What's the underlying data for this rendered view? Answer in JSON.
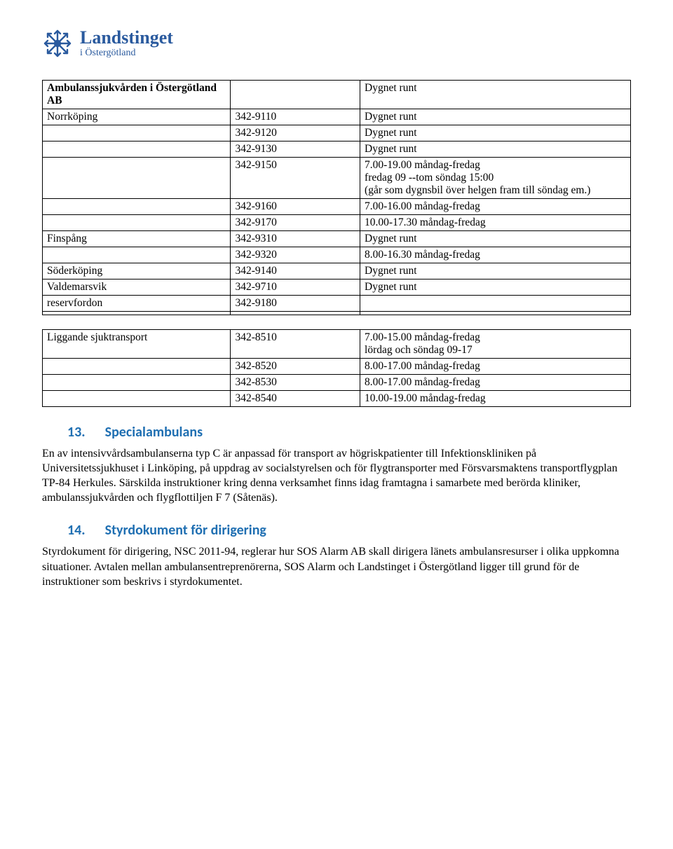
{
  "logo": {
    "title": "Landstinget",
    "subtitle": "i Östergötland"
  },
  "colors": {
    "brand": "#2a5a9e",
    "heading": "#1F6FB2",
    "border": "#000000"
  },
  "table1": {
    "rows": [
      {
        "c1": "Ambulanssjukvården i Östergötland AB",
        "c1_bold": true,
        "c2": "",
        "c3": "Dygnet runt"
      },
      {
        "c1": "Norrköping",
        "c2": "342-9110",
        "c3": "Dygnet runt"
      },
      {
        "c1": "",
        "c2": "342-9120",
        "c3": "Dygnet runt"
      },
      {
        "c1": "",
        "c2": "342-9130",
        "c3": "Dygnet runt"
      },
      {
        "c1": "",
        "c2": "342-9150",
        "c3": "7.00-19.00 måndag-fredag\nfredag 09 --tom söndag 15:00\n(går som dygnsbil över helgen fram till söndag em.)"
      },
      {
        "c1": "",
        "c2": "342-9160",
        "c3": "7.00-16.00 måndag-fredag"
      },
      {
        "c1": "",
        "c2": "342-9170",
        "c3": "10.00-17.30 måndag-fredag"
      },
      {
        "c1": "Finspång",
        "c2": "342-9310",
        "c3": "Dygnet runt"
      },
      {
        "c1": "",
        "c2": "342-9320",
        "c3": "8.00-16.30 måndag-fredag"
      },
      {
        "c1": "Söderköping",
        "c2": "342-9140",
        "c3": "Dygnet runt"
      },
      {
        "c1": "Valdemarsvik",
        "c2": "342-9710",
        "c3": "Dygnet runt"
      },
      {
        "c1": "reservfordon",
        "c2": "342-9180",
        "c3": ""
      },
      {
        "c1": "",
        "c2": "",
        "c3": ""
      }
    ]
  },
  "table2": {
    "rows": [
      {
        "c1": "Liggande sjuktransport",
        "c2": "342-8510",
        "c3": "7.00-15.00 måndag-fredag\nlördag och söndag 09-17"
      },
      {
        "c1": "",
        "c2": "342-8520",
        "c3": "8.00-17.00 måndag-fredag"
      },
      {
        "c1": "",
        "c2": "342-8530",
        "c3": "8.00-17.00 måndag-fredag"
      },
      {
        "c1": "",
        "c2": "342-8540",
        "c3": "10.00-19.00 måndag-fredag"
      }
    ]
  },
  "section13": {
    "num": "13.",
    "title": "Specialambulans",
    "body": "En av intensivvårdsambulanserna typ C är anpassad för transport av högriskpatienter till Infektionskliniken på Universitetssjukhuset i Linköping, på uppdrag av socialstyrelsen och för flygtransporter med Försvarsmaktens transportflygplan TP-84 Herkules. Särskilda instruktioner kring denna verksamhet finns idag framtagna i samarbete med berörda kliniker, ambulanssjukvården och flygflottiljen F 7 (Såtenäs)."
  },
  "section14": {
    "num": "14.",
    "title": "Styrdokument för dirigering",
    "body": "Styrdokument för dirigering, NSC 2011-94, reglerar hur SOS Alarm AB skall dirigera länets ambulansresurser i olika uppkomna situationer. Avtalen mellan ambulansentreprenörerna, SOS Alarm och Landstinget i Östergötland ligger till grund för de instruktioner som beskrivs i styrdokumentet."
  }
}
